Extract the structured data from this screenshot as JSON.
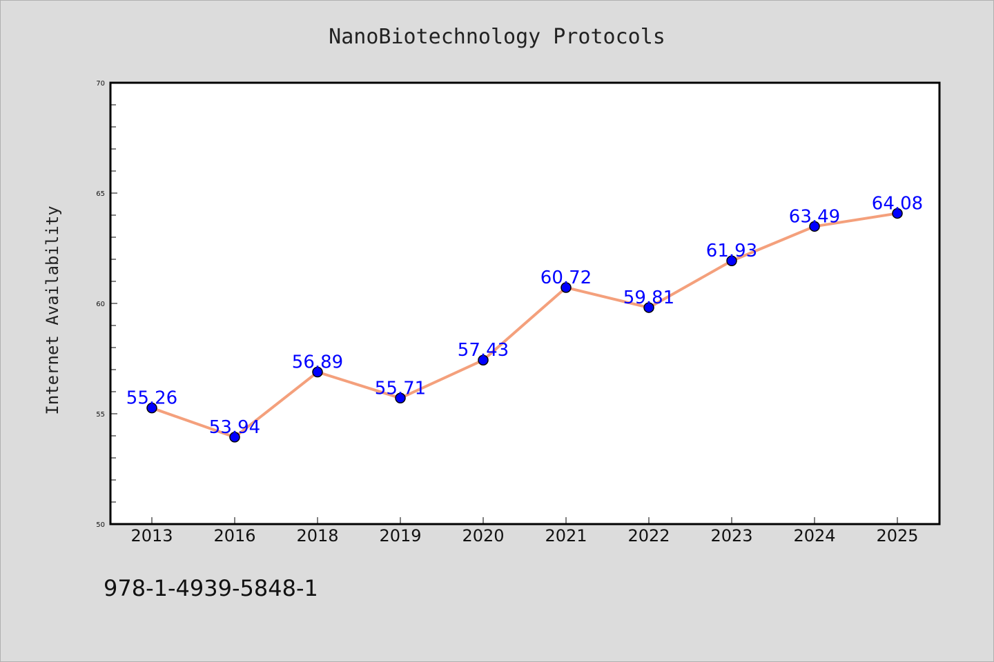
{
  "footer": {
    "isbn": "978-1-4939-5848-1"
  },
  "colors": {
    "line": "#f4a07c",
    "marker": "#0000ff",
    "label": "#0000ff",
    "background": "#dcdcdc",
    "plot_bg": "#ffffff"
  },
  "chart_data": {
    "type": "line",
    "title": "NanoBiotechnology Protocols",
    "xlabel": "",
    "ylabel": "Internet Availability",
    "categories": [
      "2013",
      "2016",
      "2018",
      "2019",
      "2020",
      "2021",
      "2022",
      "2023",
      "2024",
      "2025"
    ],
    "values": [
      55.26,
      53.94,
      56.89,
      55.71,
      57.43,
      60.72,
      59.81,
      61.93,
      63.49,
      64.08
    ],
    "data_labels": [
      "55.26",
      "53.94",
      "56.89",
      "55.71",
      "57.43",
      "60.72",
      "59.81",
      "61.93",
      "63.49",
      "64.08"
    ],
    "ylim": [
      50,
      70
    ],
    "yticks": [
      "50",
      "55",
      "60",
      "65",
      "70"
    ],
    "grid": false,
    "legend": "none"
  }
}
